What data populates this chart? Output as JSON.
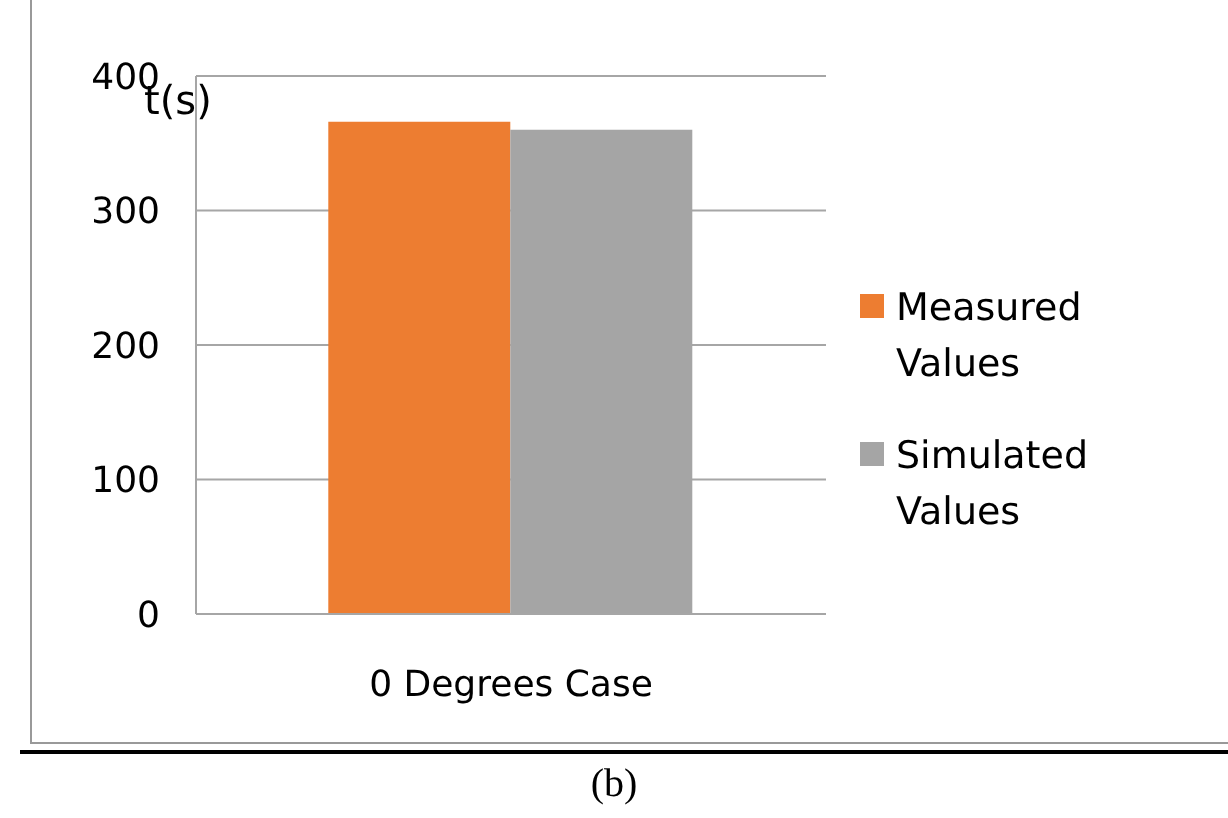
{
  "chart_data": {
    "type": "bar",
    "ylabel": "t(s)",
    "categories": [
      "0 Degrees Case"
    ],
    "series": [
      {
        "name": "Measured Values",
        "color": "#ed7d31",
        "values": [
          366
        ]
      },
      {
        "name": "Simulated Values",
        "color": "#a5a5a5",
        "values": [
          360
        ]
      }
    ],
    "ylim": [
      0,
      400
    ],
    "yticks": [
      0,
      100,
      200,
      300,
      400
    ],
    "grid": "y",
    "legend": "right",
    "annotations": [
      "(b)"
    ]
  }
}
